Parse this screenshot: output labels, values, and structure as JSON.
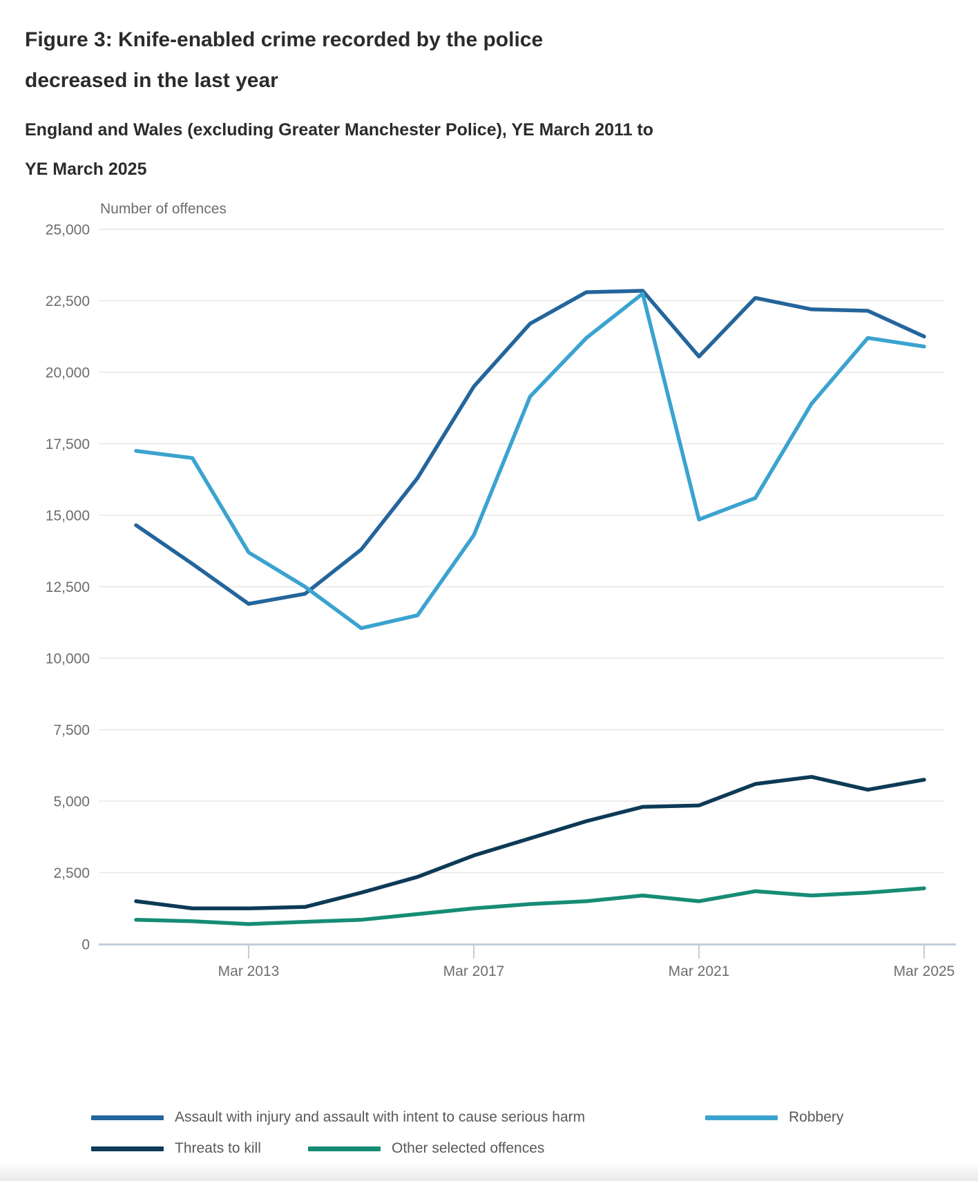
{
  "figure": {
    "title": "Figure 3: Knife-enabled crime recorded by the police decreased in the last year",
    "subtitle": "England and Wales (excluding Greater Manchester Police), YE March 2011 to YE March 2025"
  },
  "colors": {
    "grid": "#e7e7e7",
    "axis": "#c3cdda",
    "tick_text": "#6d6d6d",
    "axis_title_text": "#6d6d6d",
    "legend_text": "#595959",
    "title_text": "#2b2b2b"
  },
  "chart_data": {
    "type": "line",
    "title": "Figure 3: Knife-enabled crime recorded by the police decreased in the last year",
    "subtitle": "England and Wales (excluding Greater Manchester Police), YE March 2011 to YE March 2025",
    "ylabel": "Number of offences",
    "xlabel": "",
    "ylim": [
      0,
      25000
    ],
    "grid": "horizontal",
    "legend_position": "bottom",
    "x_unit": "year ending March",
    "x": [
      2011,
      2012,
      2013,
      2014,
      2015,
      2016,
      2017,
      2018,
      2019,
      2020,
      2021,
      2022,
      2023,
      2024,
      2025
    ],
    "xticks": [
      {
        "year": 2013,
        "label": "Mar 2013"
      },
      {
        "year": 2017,
        "label": "Mar 2017"
      },
      {
        "year": 2021,
        "label": "Mar 2021"
      },
      {
        "year": 2025,
        "label": "Mar 2025"
      }
    ],
    "yticks": [
      {
        "value": 0,
        "label": "0"
      },
      {
        "value": 2500,
        "label": "2,500"
      },
      {
        "value": 5000,
        "label": "5,000"
      },
      {
        "value": 7500,
        "label": "7,500"
      },
      {
        "value": 10000,
        "label": "10,000"
      },
      {
        "value": 12500,
        "label": "12,500"
      },
      {
        "value": 15000,
        "label": "15,000"
      },
      {
        "value": 17500,
        "label": "17,500"
      },
      {
        "value": 20000,
        "label": "20,000"
      },
      {
        "value": 22500,
        "label": "22,500"
      },
      {
        "value": 25000,
        "label": "25,000"
      }
    ],
    "series": [
      {
        "name": "Assault with injury and assault with intent to cause serious harm",
        "color": "#24659b",
        "values": [
          14650,
          13300,
          11900,
          12250,
          13800,
          16300,
          19500,
          21700,
          22800,
          22850,
          20550,
          22600,
          22200,
          22150,
          21250
        ]
      },
      {
        "name": "Robbery",
        "color": "#3ba3cf",
        "values": [
          17250,
          17000,
          13700,
          12500,
          11050,
          11500,
          14300,
          19150,
          21200,
          22750,
          14850,
          15600,
          18900,
          21200,
          20900
        ]
      },
      {
        "name": "Threats to kill",
        "color": "#0d3a56",
        "values": [
          1500,
          1250,
          1250,
          1300,
          1800,
          2350,
          3100,
          3700,
          4300,
          4800,
          4850,
          5600,
          5850,
          5400,
          5750
        ]
      },
      {
        "name": "Other selected offences",
        "color": "#168c75",
        "values": [
          850,
          800,
          700,
          780,
          850,
          1050,
          1250,
          1400,
          1500,
          1700,
          1500,
          1850,
          1700,
          1800,
          1950
        ]
      }
    ]
  }
}
